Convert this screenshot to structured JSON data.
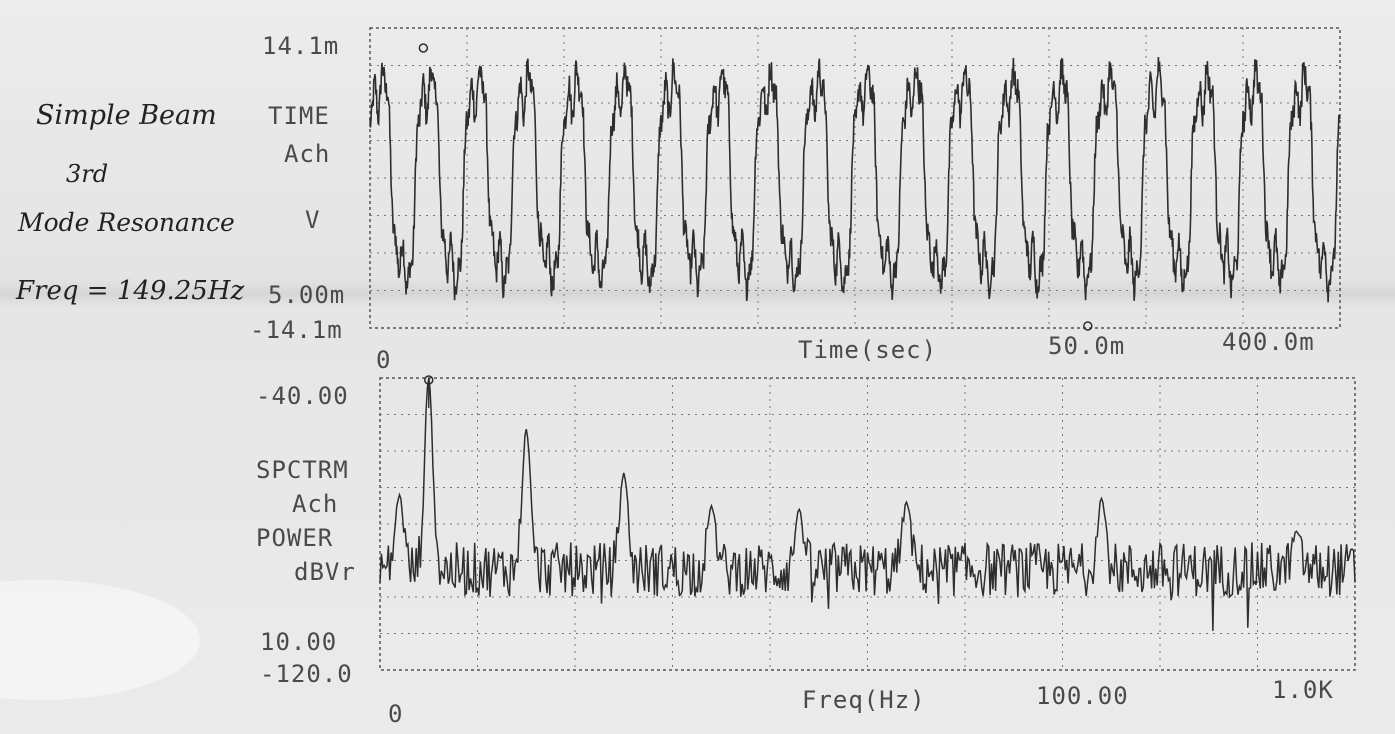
{
  "notes": {
    "line1": "Simple Beam",
    "line2": "3rd",
    "line3": "Mode Resonance",
    "line4": "Freq = 149.25Hz"
  },
  "chart_data": [
    {
      "type": "line",
      "labels": [
        "TIME",
        "Ach",
        "V"
      ],
      "xlabel": "Time(sec)",
      "x_start_label": "0",
      "x_marker_label": "50.0m",
      "x_end_label": "400.0m",
      "y_top_label": "14.1m",
      "y_scale_label": "5.00m",
      "y_bottom_label": "-14.1m",
      "xlim": [
        0,
        0.4
      ],
      "ylim": [
        -0.0141,
        0.0141
      ],
      "grid": true,
      "cycles_shown": 20,
      "waveform": "sinusoid with strong higher harmonic content, amplitude ~14.1m"
    },
    {
      "type": "line",
      "labels": [
        "SPCTRM",
        "Ach",
        "POWER",
        "dBVr"
      ],
      "xlabel": "Freq(Hz)",
      "x_start_label": "0",
      "x_scale_label": "100.00",
      "x_end_label": "1.0K",
      "y_top_label": "-40.00",
      "y_scale_label": "10.00",
      "y_bottom_label": "-120.0",
      "xlim": [
        0,
        1000
      ],
      "ylim": [
        -120,
        -40
      ],
      "grid": true,
      "peaks": [
        {
          "x": 20,
          "y": -72
        },
        {
          "x": 50,
          "y": -40
        },
        {
          "x": 150,
          "y": -54
        },
        {
          "x": 250,
          "y": -66
        },
        {
          "x": 340,
          "y": -75
        },
        {
          "x": 430,
          "y": -76
        },
        {
          "x": 540,
          "y": -74
        },
        {
          "x": 740,
          "y": -73
        },
        {
          "x": 940,
          "y": -82
        }
      ],
      "noise_floor": [
        -100,
        -85
      ]
    }
  ]
}
